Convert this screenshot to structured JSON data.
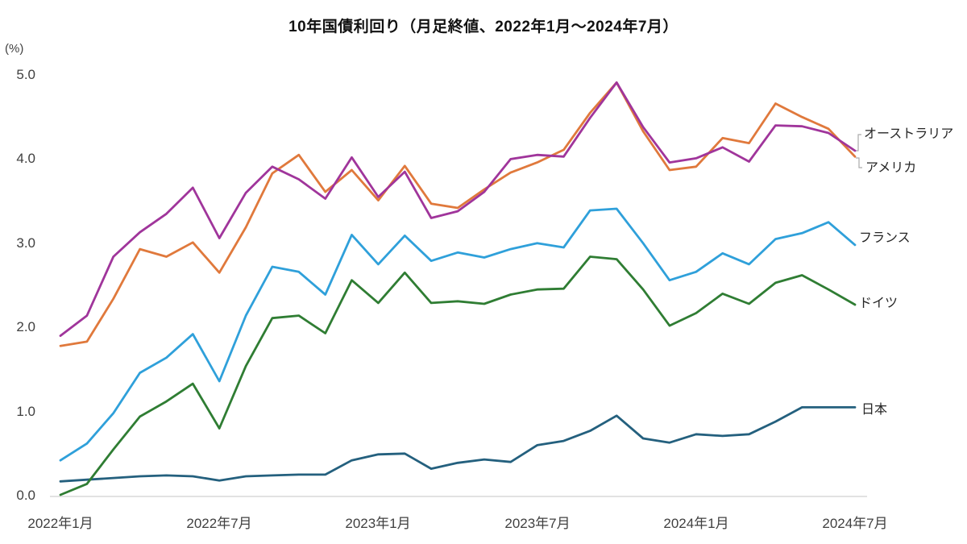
{
  "chart_data": {
    "type": "line",
    "title": "10年国債利回り（月足終値、2022年1月～2024年7月）",
    "y_unit": "(%)",
    "ylabel": "",
    "xlabel": "",
    "ylim": [
      0.0,
      5.0
    ],
    "grid": false,
    "legend_position": "right-end-labels",
    "y_ticks": [
      "5.0",
      "4.0",
      "3.0",
      "2.0",
      "1.0",
      "0.0"
    ],
    "x_ticks": [
      "2022年1月",
      "2022年7月",
      "2023年1月",
      "2023年7月",
      "2024年1月",
      "2024年7月"
    ],
    "x_tick_month_indices": [
      0,
      6,
      12,
      18,
      24,
      30
    ],
    "categories": [
      "2022-01",
      "2022-02",
      "2022-03",
      "2022-04",
      "2022-05",
      "2022-06",
      "2022-07",
      "2022-08",
      "2022-09",
      "2022-10",
      "2022-11",
      "2022-12",
      "2023-01",
      "2023-02",
      "2023-03",
      "2023-04",
      "2023-05",
      "2023-06",
      "2023-07",
      "2023-08",
      "2023-09",
      "2023-10",
      "2023-11",
      "2023-12",
      "2024-01",
      "2024-02",
      "2024-03",
      "2024-04",
      "2024-05",
      "2024-06",
      "2024-07"
    ],
    "series": [
      {
        "key": "australia",
        "name": "オーストラリア",
        "color": "#A0359B",
        "values": [
          1.9,
          2.14,
          2.84,
          3.13,
          3.35,
          3.66,
          3.06,
          3.6,
          3.91,
          3.76,
          3.53,
          4.02,
          3.55,
          3.85,
          3.3,
          3.38,
          3.61,
          4.0,
          4.05,
          4.03,
          4.49,
          4.91,
          4.38,
          3.96,
          4.01,
          4.14,
          3.97,
          4.4,
          4.39,
          4.31,
          4.1
        ]
      },
      {
        "key": "usa",
        "name": "アメリカ",
        "color": "#E0793C",
        "values": [
          1.78,
          1.83,
          2.34,
          2.93,
          2.84,
          3.01,
          2.65,
          3.19,
          3.83,
          4.05,
          3.61,
          3.87,
          3.51,
          3.92,
          3.47,
          3.42,
          3.64,
          3.84,
          3.96,
          4.11,
          4.55,
          4.91,
          4.33,
          3.87,
          3.91,
          4.25,
          4.19,
          4.66,
          4.5,
          4.36,
          4.03
        ]
      },
      {
        "key": "france",
        "name": "フランス",
        "color": "#2FA0DA",
        "values": [
          0.42,
          0.62,
          0.98,
          1.46,
          1.64,
          1.92,
          1.36,
          2.14,
          2.72,
          2.66,
          2.39,
          3.1,
          2.75,
          3.09,
          2.79,
          2.89,
          2.83,
          2.93,
          3.0,
          2.95,
          3.39,
          3.41,
          3.0,
          2.56,
          2.66,
          2.88,
          2.75,
          3.05,
          3.12,
          3.25,
          2.98
        ]
      },
      {
        "key": "germany",
        "name": "ドイツ",
        "color": "#2F7D33",
        "values": [
          0.01,
          0.14,
          0.55,
          0.94,
          1.12,
          1.33,
          0.8,
          1.54,
          2.11,
          2.14,
          1.93,
          2.56,
          2.29,
          2.65,
          2.29,
          2.31,
          2.28,
          2.39,
          2.45,
          2.46,
          2.84,
          2.81,
          2.45,
          2.02,
          2.17,
          2.4,
          2.28,
          2.53,
          2.62,
          2.45,
          2.27
        ]
      },
      {
        "key": "japan",
        "name": "日本",
        "color": "#24607E",
        "values": [
          0.17,
          0.19,
          0.21,
          0.23,
          0.24,
          0.23,
          0.18,
          0.23,
          0.24,
          0.25,
          0.25,
          0.42,
          0.49,
          0.5,
          0.32,
          0.39,
          0.43,
          0.4,
          0.6,
          0.65,
          0.77,
          0.95,
          0.68,
          0.63,
          0.73,
          0.71,
          0.73,
          0.88,
          1.05,
          1.05,
          1.05
        ]
      }
    ]
  }
}
